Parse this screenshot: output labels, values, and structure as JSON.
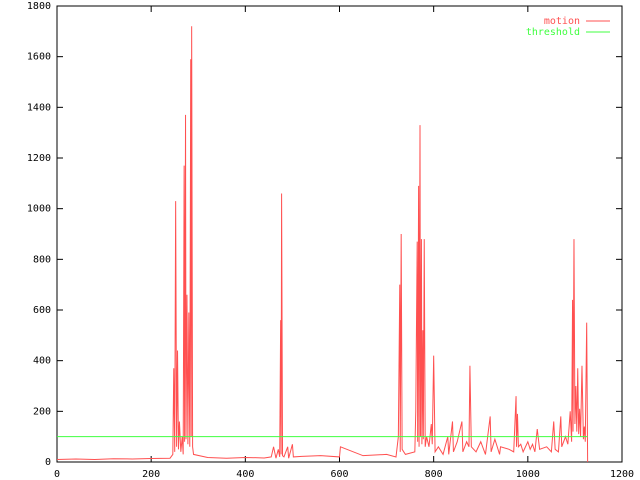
{
  "chart_data": {
    "type": "line",
    "xlim": [
      0,
      1200
    ],
    "xticks": [
      0,
      200,
      400,
      600,
      800,
      1000,
      1200
    ],
    "ylim": [
      0,
      1800
    ],
    "yticks": [
      0,
      200,
      400,
      600,
      800,
      1000,
      1200,
      1400,
      1600,
      1800
    ],
    "legend": "top-right",
    "series": [
      {
        "name": "motion",
        "color": "#ff5050",
        "x": [
          0,
          40,
          80,
          120,
          160,
          200,
          240,
          246,
          248,
          250,
          252,
          254,
          256,
          258,
          260,
          263,
          266,
          268,
          270,
          271,
          273,
          274,
          276,
          278,
          280,
          282,
          284,
          285,
          286,
          288,
          290,
          320,
          360,
          400,
          440,
          455,
          460,
          465,
          470,
          473,
          475,
          476,
          477,
          479,
          482,
          490,
          492,
          500,
          502,
          520,
          560,
          600,
          602,
          650,
          700,
          720,
          725,
          728,
          729,
          731,
          733,
          740,
          760,
          762,
          765,
          766,
          768,
          769,
          771,
          772,
          774,
          775,
          777,
          778,
          780,
          782,
          785,
          790,
          795,
          797,
          800,
          803,
          810,
          820,
          830,
          832,
          840,
          842,
          850,
          860,
          862,
          870,
          875,
          877,
          880,
          890,
          900,
          910,
          920,
          922,
          930,
          940,
          942,
          960,
          970,
          975,
          976,
          978,
          980,
          985,
          990,
          1000,
          1005,
          1010,
          1015,
          1020,
          1025,
          1040,
          1050,
          1055,
          1058,
          1065,
          1070,
          1072,
          1080,
          1085,
          1090,
          1093,
          1095,
          1096,
          1098,
          1100,
          1102,
          1104,
          1106,
          1108,
          1110,
          1112,
          1115,
          1118,
          1120,
          1122,
          1125,
          1127
        ],
        "values": [
          10,
          12,
          10,
          13,
          12,
          14,
          15,
          30,
          370,
          40,
          1030,
          60,
          440,
          50,
          160,
          40,
          100,
          30,
          1170,
          80,
          1370,
          90,
          660,
          70,
          590,
          60,
          1590,
          100,
          1720,
          60,
          30,
          18,
          15,
          18,
          16,
          20,
          60,
          15,
          50,
          20,
          560,
          30,
          1060,
          25,
          20,
          60,
          15,
          70,
          20,
          22,
          25,
          20,
          60,
          25,
          30,
          20,
          100,
          700,
          40,
          900,
          50,
          30,
          40,
          200,
          870,
          80,
          1090,
          60,
          1330,
          100,
          880,
          70,
          520,
          90,
          880,
          60,
          100,
          60,
          150,
          70,
          420,
          40,
          60,
          30,
          100,
          30,
          160,
          40,
          80,
          160,
          40,
          80,
          60,
          380,
          60,
          40,
          80,
          30,
          180,
          40,
          90,
          30,
          60,
          50,
          40,
          260,
          60,
          190,
          60,
          70,
          40,
          80,
          50,
          70,
          40,
          130,
          50,
          60,
          40,
          160,
          50,
          40,
          180,
          60,
          100,
          70,
          200,
          80,
          640,
          120,
          880,
          150,
          300,
          120,
          370,
          110,
          210,
          100,
          380,
          90,
          140,
          80,
          550,
          0
        ]
      },
      {
        "name": "threshold",
        "color": "#40ff40",
        "x": [
          0,
          1127
        ],
        "values": [
          100,
          100
        ]
      }
    ]
  }
}
